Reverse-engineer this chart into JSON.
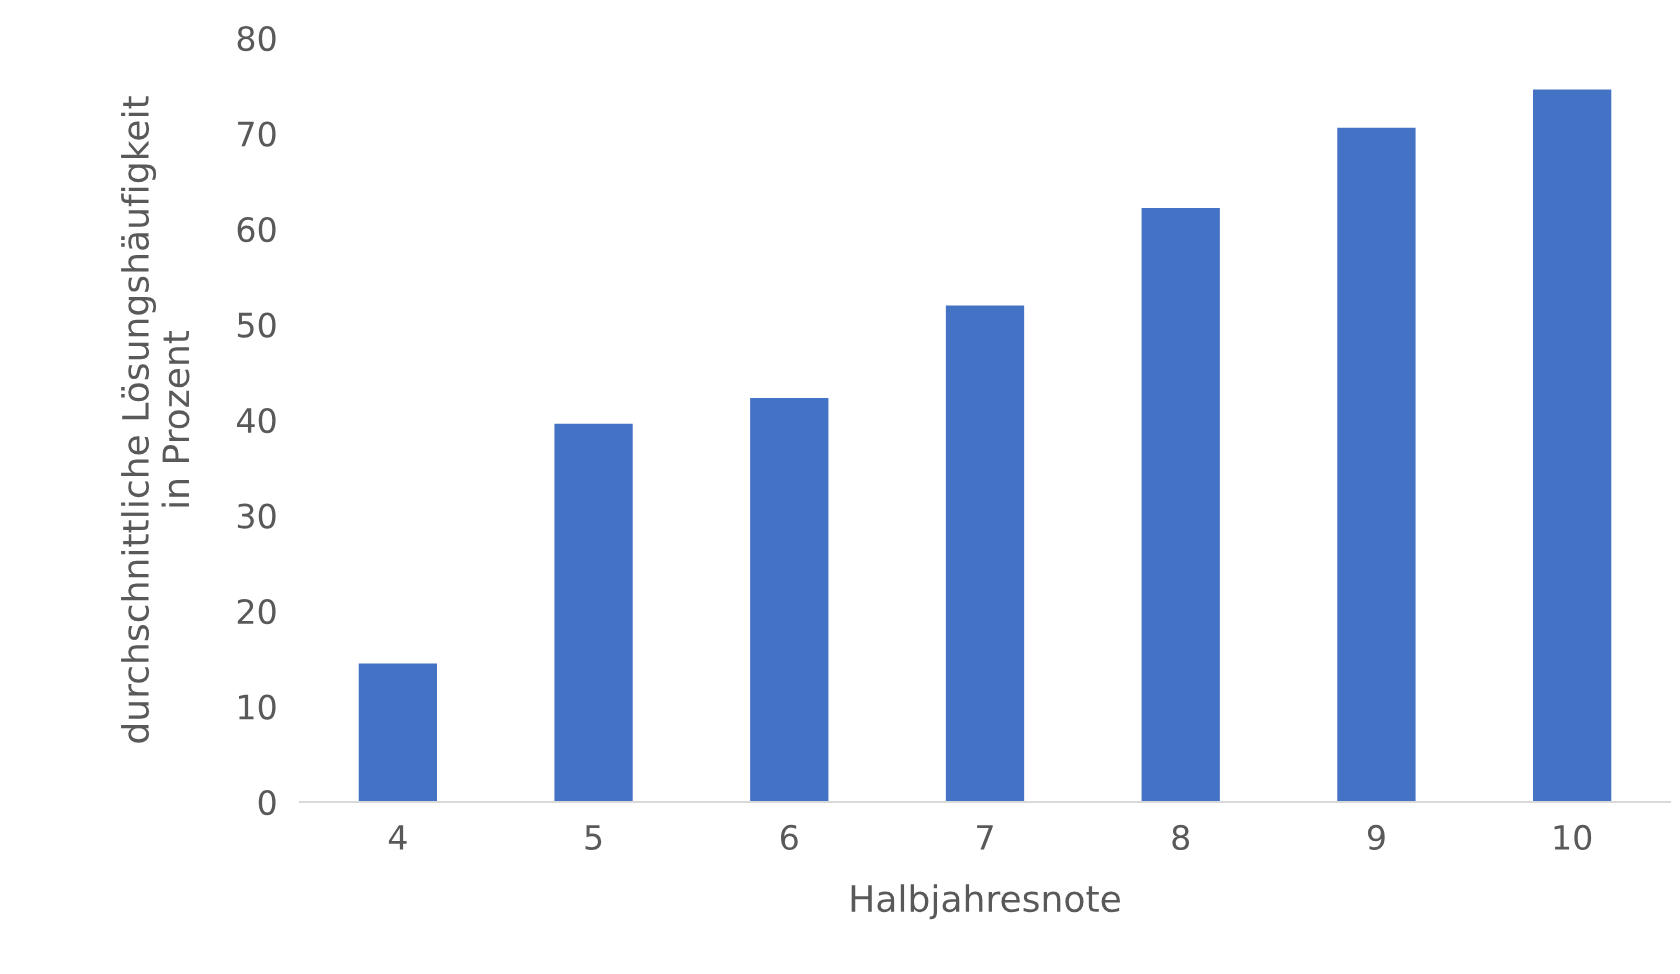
{
  "chart_data": {
    "type": "bar",
    "xlabel": "Halbjahresnote",
    "ylabel": "durchschnittliche Lösungshäufigkeit\nin Prozent",
    "categories": [
      "4",
      "5",
      "6",
      "7",
      "8",
      "9",
      "10"
    ],
    "values": [
      14.5,
      39.6,
      42.3,
      52.0,
      62.2,
      70.6,
      74.6
    ],
    "color": "#4472c4",
    "ylim": [
      0,
      80
    ],
    "yticks": [
      0,
      10,
      20,
      30,
      40,
      50,
      60,
      70,
      80
    ],
    "grid": false
  }
}
